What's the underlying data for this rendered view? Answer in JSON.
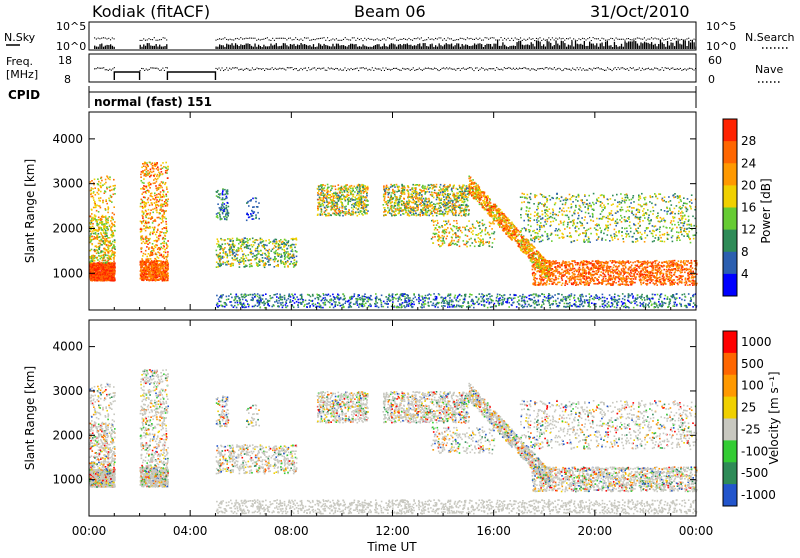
{
  "header": {
    "station": "Kodiak (fitACF)",
    "beam": "Beam 06",
    "date": "31/Oct/2010"
  },
  "noise_panel": {
    "left_label": "N.Sky",
    "right_label": "N.Search",
    "tick_top": "10^5",
    "tick_bottom": "10^0",
    "right_tick_top": "10^5",
    "right_tick_bottom": "10^0"
  },
  "freq_panel": {
    "left_label_line1": "Freq.",
    "left_label_line2": "[MHz]",
    "tick_top": "18",
    "tick_bottom": "8",
    "right_label": "Nave",
    "right_tick_top": "60",
    "right_tick_bottom": "0"
  },
  "cpid_panel": {
    "label": "CPID",
    "mode": "normal (fast) 151"
  },
  "colors": {
    "power_scale": [
      "#0000ff",
      "#2b5fb0",
      "#2e8b57",
      "#66cc33",
      "#f0d000",
      "#ff9900",
      "#ff6600",
      "#ff2200"
    ],
    "velocity_scale": [
      "#2255cc",
      "#2e8b57",
      "#33cc33",
      "#c8c8c0",
      "#f0d000",
      "#ff9900",
      "#ff6600",
      "#ff0000"
    ],
    "ground_scatter": "#c8c8c0"
  },
  "chart_data": [
    {
      "type": "heatmap",
      "name": "power",
      "ylabel": "Slant Range [km]",
      "ylim": [
        180,
        4600
      ],
      "yticks": [
        "1000",
        "2000",
        "3000",
        "4000"
      ],
      "ytick_values": [
        1000,
        2000,
        3000,
        4000
      ],
      "colorbar_label": "Power [dB]",
      "colorbar_ticks": [
        "4",
        "8",
        "12",
        "16",
        "20",
        "24",
        "28"
      ],
      "colorbar_range": [
        0,
        32
      ]
    },
    {
      "type": "heatmap",
      "name": "velocity",
      "ylabel": "Slant Range [km]",
      "ylim": [
        180,
        4600
      ],
      "yticks": [
        "1000",
        "2000",
        "3000",
        "4000"
      ],
      "ytick_values": [
        1000,
        2000,
        3000,
        4000
      ],
      "colorbar_label": "Velocity [m s⁻¹]",
      "colorbar_ticks": [
        "1000",
        "500",
        "100",
        "25",
        "-25",
        "-100",
        "-500",
        "-1000"
      ]
    }
  ],
  "xaxis": {
    "label": "Time UT",
    "ticks": [
      "00:00",
      "04:00",
      "08:00",
      "12:00",
      "16:00",
      "20:00",
      "00:00"
    ],
    "range_hours": [
      0,
      24
    ]
  }
}
